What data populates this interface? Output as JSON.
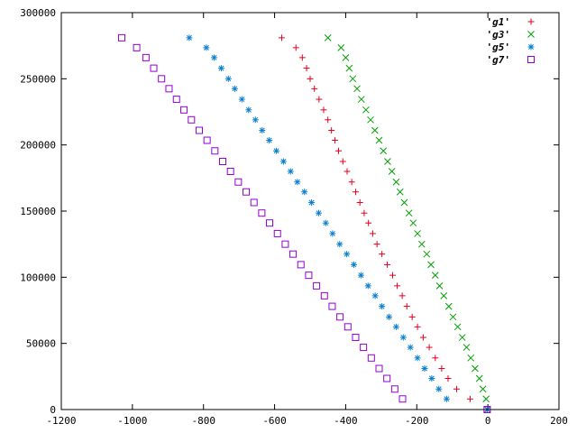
{
  "chart_data": {
    "type": "scatter",
    "title": "",
    "xlabel": "",
    "ylabel": "",
    "xlim": [
      -1200,
      200
    ],
    "ylim": [
      0,
      300000
    ],
    "xticks": [
      -1200,
      -1000,
      -800,
      -600,
      -400,
      -200,
      0,
      200
    ],
    "yticks": [
      0,
      50000,
      100000,
      150000,
      200000,
      250000,
      300000
    ],
    "grid": false,
    "legend_position": "top-right",
    "series": [
      {
        "name": "'g1'",
        "color": "#e0001e",
        "marker": "plus",
        "points": [
          [
            -580,
            281000
          ],
          [
            -540,
            273500
          ],
          [
            -522,
            266000
          ],
          [
            -510,
            258000
          ],
          [
            -500,
            250000
          ],
          [
            -488,
            242500
          ],
          [
            -475,
            234500
          ],
          [
            -462,
            226500
          ],
          [
            -450,
            219000
          ],
          [
            -440,
            211000
          ],
          [
            -430,
            203500
          ],
          [
            -420,
            195500
          ],
          [
            -408,
            187500
          ],
          [
            -396,
            180000
          ],
          [
            -383,
            172000
          ],
          [
            -372,
            164500
          ],
          [
            -360,
            156500
          ],
          [
            -348,
            148500
          ],
          [
            -336,
            141000
          ],
          [
            -324,
            133000
          ],
          [
            -312,
            125000
          ],
          [
            -298,
            117500
          ],
          [
            -283,
            109500
          ],
          [
            -268,
            101500
          ],
          [
            -255,
            93500
          ],
          [
            -241,
            86000
          ],
          [
            -228,
            78000
          ],
          [
            -213,
            70000
          ],
          [
            -198,
            62500
          ],
          [
            -182,
            54500
          ],
          [
            -165,
            47000
          ],
          [
            -148,
            39000
          ],
          [
            -130,
            31000
          ],
          [
            -112,
            23500
          ],
          [
            -88,
            15500
          ],
          [
            -50,
            8000
          ],
          [
            -2,
            0
          ]
        ]
      },
      {
        "name": "'g3'",
        "color": "#00a000",
        "marker": "cross",
        "points": [
          [
            -450,
            281000
          ],
          [
            -413,
            273500
          ],
          [
            -400,
            266000
          ],
          [
            -390,
            258000
          ],
          [
            -380,
            250000
          ],
          [
            -368,
            242500
          ],
          [
            -356,
            234500
          ],
          [
            -343,
            226500
          ],
          [
            -330,
            219000
          ],
          [
            -318,
            211000
          ],
          [
            -306,
            203500
          ],
          [
            -294,
            195500
          ],
          [
            -282,
            187500
          ],
          [
            -270,
            180000
          ],
          [
            -258,
            172000
          ],
          [
            -247,
            164500
          ],
          [
            -235,
            156500
          ],
          [
            -222,
            148500
          ],
          [
            -210,
            141000
          ],
          [
            -198,
            133000
          ],
          [
            -186,
            125000
          ],
          [
            -172,
            117500
          ],
          [
            -160,
            109500
          ],
          [
            -148,
            101500
          ],
          [
            -136,
            93500
          ],
          [
            -124,
            86000
          ],
          [
            -110,
            78000
          ],
          [
            -98,
            70000
          ],
          [
            -85,
            62500
          ],
          [
            -72,
            54500
          ],
          [
            -60,
            47000
          ],
          [
            -48,
            39000
          ],
          [
            -36,
            31000
          ],
          [
            -24,
            23500
          ],
          [
            -14,
            15500
          ],
          [
            -5,
            8000
          ],
          [
            -1,
            0
          ]
        ]
      },
      {
        "name": "'g5'",
        "color": "#0a7fd0",
        "marker": "star",
        "points": [
          [
            -840,
            281000
          ],
          [
            -792,
            273500
          ],
          [
            -770,
            266000
          ],
          [
            -750,
            258000
          ],
          [
            -730,
            250000
          ],
          [
            -712,
            242500
          ],
          [
            -692,
            234500
          ],
          [
            -673,
            226500
          ],
          [
            -654,
            219000
          ],
          [
            -635,
            211000
          ],
          [
            -615,
            203500
          ],
          [
            -595,
            195500
          ],
          [
            -575,
            187500
          ],
          [
            -555,
            180000
          ],
          [
            -536,
            172000
          ],
          [
            -516,
            164500
          ],
          [
            -496,
            156500
          ],
          [
            -476,
            148500
          ],
          [
            -456,
            141000
          ],
          [
            -437,
            133000
          ],
          [
            -417,
            125000
          ],
          [
            -397,
            117500
          ],
          [
            -377,
            109500
          ],
          [
            -357,
            101500
          ],
          [
            -337,
            93500
          ],
          [
            -317,
            86000
          ],
          [
            -298,
            78000
          ],
          [
            -278,
            70000
          ],
          [
            -258,
            62500
          ],
          [
            -238,
            54500
          ],
          [
            -218,
            47000
          ],
          [
            -198,
            39000
          ],
          [
            -178,
            31000
          ],
          [
            -158,
            23500
          ],
          [
            -138,
            15500
          ],
          [
            -116,
            8000
          ],
          [
            -2,
            0
          ]
        ]
      },
      {
        "name": "'g7'",
        "color": "#9400d3",
        "marker": "square",
        "points": [
          [
            -1030,
            281000
          ],
          [
            -988,
            273500
          ],
          [
            -962,
            266000
          ],
          [
            -940,
            258000
          ],
          [
            -918,
            250000
          ],
          [
            -897,
            242500
          ],
          [
            -876,
            234500
          ],
          [
            -855,
            226500
          ],
          [
            -834,
            219000
          ],
          [
            -812,
            211000
          ],
          [
            -790,
            203500
          ],
          [
            -768,
            195500
          ],
          [
            -746,
            187500
          ],
          [
            -724,
            180000
          ],
          [
            -702,
            172000
          ],
          [
            -680,
            164500
          ],
          [
            -658,
            156500
          ],
          [
            -636,
            148500
          ],
          [
            -614,
            141000
          ],
          [
            -592,
            133000
          ],
          [
            -570,
            125000
          ],
          [
            -548,
            117500
          ],
          [
            -526,
            109500
          ],
          [
            -504,
            101500
          ],
          [
            -482,
            93500
          ],
          [
            -460,
            86000
          ],
          [
            -438,
            78000
          ],
          [
            -416,
            70000
          ],
          [
            -394,
            62500
          ],
          [
            -372,
            54500
          ],
          [
            -350,
            47000
          ],
          [
            -328,
            39000
          ],
          [
            -306,
            31000
          ],
          [
            -284,
            23500
          ],
          [
            -262,
            15500
          ],
          [
            -240,
            8000
          ],
          [
            -2,
            0
          ]
        ]
      }
    ]
  }
}
